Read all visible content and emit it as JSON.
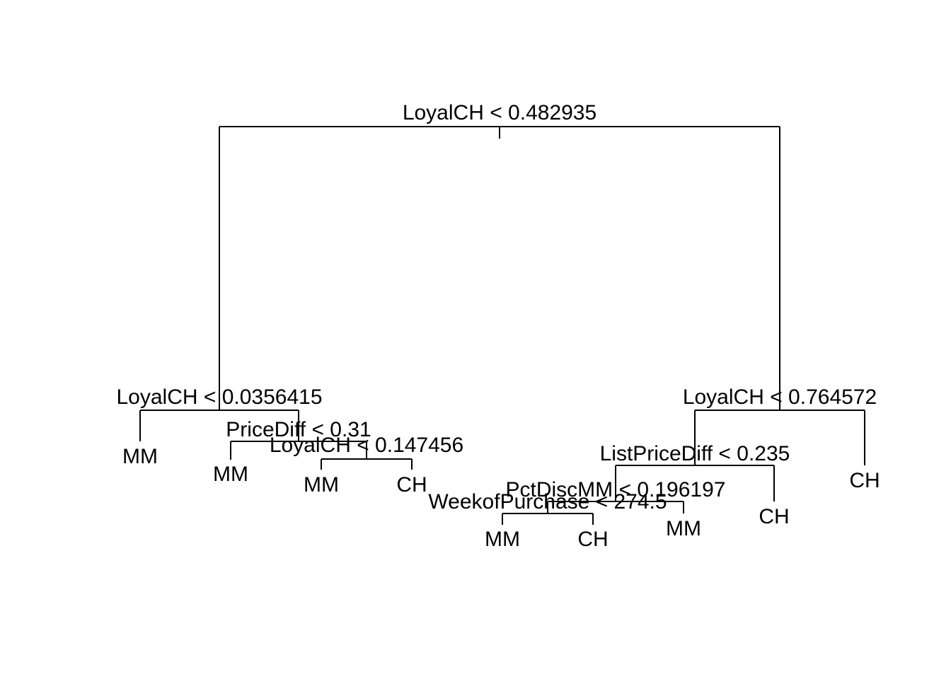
{
  "colors": {
    "line": "#000000",
    "background": "#ffffff"
  },
  "tree": {
    "splits": [
      {
        "id": "root",
        "label": "LoyalCH < 0.482935"
      },
      {
        "id": "l",
        "label": "LoyalCH < 0.0356415"
      },
      {
        "id": "lr",
        "label": "PriceDiff < 0.31"
      },
      {
        "id": "lrr",
        "label": "LoyalCH < 0.147456"
      },
      {
        "id": "r",
        "label": "LoyalCH < 0.764572"
      },
      {
        "id": "rl",
        "label": "ListPriceDiff < 0.235"
      },
      {
        "id": "rll",
        "label": "PctDiscMM < 0.196197"
      },
      {
        "id": "rlll",
        "label": "WeekofPurchase < 274.5"
      }
    ],
    "leaves": [
      {
        "id": "ll",
        "label": "MM"
      },
      {
        "id": "lrl",
        "label": "MM"
      },
      {
        "id": "lrrl",
        "label": "MM"
      },
      {
        "id": "lrrr",
        "label": "CH"
      },
      {
        "id": "rllll",
        "label": "MM"
      },
      {
        "id": "rlllr",
        "label": "CH"
      },
      {
        "id": "rllr",
        "label": "MM"
      },
      {
        "id": "rlr",
        "label": "CH"
      },
      {
        "id": "rr",
        "label": "CH"
      }
    ]
  }
}
